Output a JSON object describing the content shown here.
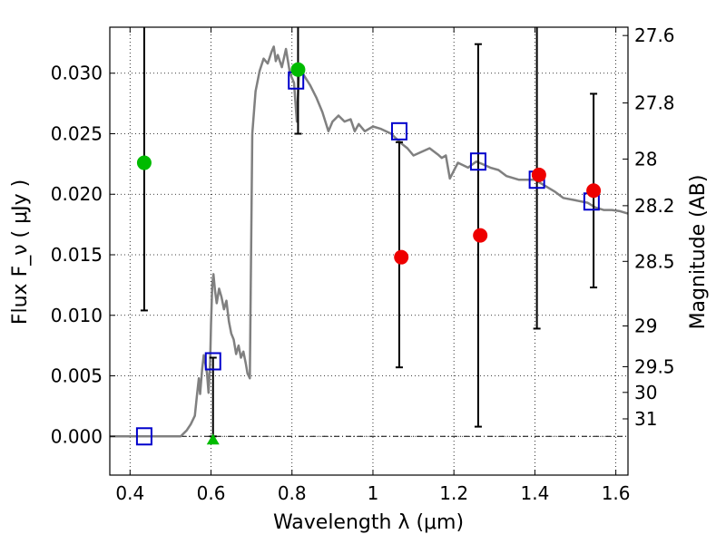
{
  "chart_data": {
    "type": "scatter",
    "title": "",
    "xlabel": "Wavelength  λ (μm)",
    "ylabel": "Flux  F_ν ( μJy )",
    "ylabel_right": "Magnitude (AB)",
    "xlim": [
      0.35,
      1.63
    ],
    "ylim": [
      -0.0032,
      0.0338
    ],
    "grid": true,
    "x_ticks": [
      {
        "value": 0.4,
        "label": "0.4"
      },
      {
        "value": 0.6,
        "label": "0.6"
      },
      {
        "value": 0.8,
        "label": "0.8"
      },
      {
        "value": 1.0,
        "label": "1"
      },
      {
        "value": 1.2,
        "label": "1.2"
      },
      {
        "value": 1.4,
        "label": "1.4"
      },
      {
        "value": 1.6,
        "label": "1.6"
      }
    ],
    "y_ticks": [
      {
        "value": 0.0,
        "label": "0.000"
      },
      {
        "value": 0.005,
        "label": "0.005"
      },
      {
        "value": 0.01,
        "label": "0.010"
      },
      {
        "value": 0.015,
        "label": "0.015"
      },
      {
        "value": 0.02,
        "label": "0.020"
      },
      {
        "value": 0.025,
        "label": "0.025"
      },
      {
        "value": 0.03,
        "label": "0.030"
      }
    ],
    "magnitude_ticks": [
      {
        "value": 27.6,
        "label": "27.6"
      },
      {
        "value": 27.8,
        "label": "27.8"
      },
      {
        "value": 28.0,
        "label": "28"
      },
      {
        "value": 28.2,
        "label": "28.2"
      },
      {
        "value": 28.5,
        "label": "28.5"
      },
      {
        "value": 29.0,
        "label": "29"
      },
      {
        "value": 29.5,
        "label": "29.5"
      },
      {
        "value": 30.0,
        "label": "30"
      },
      {
        "value": 31.0,
        "label": "31"
      }
    ],
    "magnitude_zero_point": 23.9,
    "model_sed": {
      "color": "#808080",
      "points": [
        [
          0.35,
          0.0
        ],
        [
          0.5,
          0.0
        ],
        [
          0.525,
          0.0
        ],
        [
          0.54,
          0.0005
        ],
        [
          0.55,
          0.001
        ],
        [
          0.56,
          0.0017
        ],
        [
          0.565,
          0.0033
        ],
        [
          0.57,
          0.0048
        ],
        [
          0.573,
          0.0035
        ],
        [
          0.578,
          0.0055
        ],
        [
          0.582,
          0.0067
        ],
        [
          0.586,
          0.006
        ],
        [
          0.59,
          0.0052
        ],
        [
          0.594,
          0.0036
        ],
        [
          0.598,
          0.0062
        ],
        [
          0.6,
          0.0092
        ],
        [
          0.603,
          0.0125
        ],
        [
          0.606,
          0.0134
        ],
        [
          0.61,
          0.012
        ],
        [
          0.614,
          0.011
        ],
        [
          0.62,
          0.0122
        ],
        [
          0.626,
          0.0115
        ],
        [
          0.632,
          0.0105
        ],
        [
          0.638,
          0.0112
        ],
        [
          0.644,
          0.0095
        ],
        [
          0.65,
          0.0085
        ],
        [
          0.656,
          0.008
        ],
        [
          0.662,
          0.0068
        ],
        [
          0.668,
          0.0075
        ],
        [
          0.674,
          0.0065
        ],
        [
          0.68,
          0.007
        ],
        [
          0.686,
          0.006
        ],
        [
          0.69,
          0.0052
        ],
        [
          0.696,
          0.0048
        ],
        [
          0.702,
          0.025
        ],
        [
          0.71,
          0.0285
        ],
        [
          0.72,
          0.0302
        ],
        [
          0.73,
          0.0312
        ],
        [
          0.74,
          0.0308
        ],
        [
          0.75,
          0.0318
        ],
        [
          0.755,
          0.0322
        ],
        [
          0.76,
          0.031
        ],
        [
          0.765,
          0.0315
        ],
        [
          0.775,
          0.0305
        ],
        [
          0.785,
          0.032
        ],
        [
          0.795,
          0.03
        ],
        [
          0.805,
          0.0292
        ],
        [
          0.812,
          0.026
        ],
        [
          0.818,
          0.0305
        ],
        [
          0.83,
          0.0298
        ],
        [
          0.845,
          0.029
        ],
        [
          0.86,
          0.028
        ],
        [
          0.875,
          0.0268
        ],
        [
          0.89,
          0.0252
        ],
        [
          0.9,
          0.026
        ],
        [
          0.915,
          0.0265
        ],
        [
          0.93,
          0.026
        ],
        [
          0.945,
          0.0262
        ],
        [
          0.955,
          0.0252
        ],
        [
          0.965,
          0.0258
        ],
        [
          0.98,
          0.0252
        ],
        [
          1.0,
          0.0256
        ],
        [
          1.02,
          0.0254
        ],
        [
          1.045,
          0.025
        ],
        [
          1.07,
          0.0242
        ],
        [
          1.085,
          0.0238
        ],
        [
          1.1,
          0.0232
        ],
        [
          1.12,
          0.0235
        ],
        [
          1.14,
          0.0238
        ],
        [
          1.16,
          0.0233
        ],
        [
          1.17,
          0.023
        ],
        [
          1.18,
          0.0232
        ],
        [
          1.19,
          0.0213
        ],
        [
          1.21,
          0.0226
        ],
        [
          1.235,
          0.0222
        ],
        [
          1.255,
          0.0227
        ],
        [
          1.27,
          0.0225
        ],
        [
          1.29,
          0.0222
        ],
        [
          1.31,
          0.022
        ],
        [
          1.33,
          0.0215
        ],
        [
          1.36,
          0.0212
        ],
        [
          1.4,
          0.0212
        ],
        [
          1.42,
          0.0208
        ],
        [
          1.45,
          0.0202
        ],
        [
          1.47,
          0.0197
        ],
        [
          1.5,
          0.0195
        ],
        [
          1.53,
          0.0193
        ],
        [
          1.55,
          0.0189
        ],
        [
          1.57,
          0.0187
        ],
        [
          1.59,
          0.0187
        ],
        [
          1.61,
          0.0186
        ],
        [
          1.63,
          0.0184
        ]
      ]
    },
    "series": [
      {
        "marker": "open-square",
        "color": "#0000cc",
        "points": [
          {
            "x": 0.435,
            "y": 0.0
          },
          {
            "x": 0.605,
            "y": 0.0062
          },
          {
            "x": 0.81,
            "y": 0.0294
          },
          {
            "x": 1.065,
            "y": 0.0252
          },
          {
            "x": 1.26,
            "y": 0.0227
          },
          {
            "x": 1.405,
            "y": 0.0212
          },
          {
            "x": 1.54,
            "y": 0.0194
          }
        ]
      },
      {
        "marker": "filled-circle",
        "color": "#00bb00",
        "points": [
          {
            "x": 0.435,
            "y": 0.0226
          },
          {
            "x": 0.815,
            "y": 0.0303
          }
        ]
      },
      {
        "marker": "filled-triangle",
        "color": "#00bb00",
        "points": [
          {
            "x": 0.605,
            "y": -0.0003
          }
        ]
      },
      {
        "marker": "filled-circle",
        "color": "#ee0000",
        "points": [
          {
            "x": 1.07,
            "y": 0.0148
          },
          {
            "x": 1.265,
            "y": 0.0166
          },
          {
            "x": 1.41,
            "y": 0.0216
          },
          {
            "x": 1.545,
            "y": 0.0203
          }
        ]
      }
    ],
    "error_bars": [
      {
        "x": 0.435,
        "low": 0.0104,
        "high": 0.0338
      },
      {
        "x": 0.605,
        "low": 0.0,
        "high": 0.0065
      },
      {
        "x": 0.815,
        "low": 0.025,
        "high": 0.0338
      },
      {
        "x": 1.065,
        "low": 0.0057,
        "high": 0.0243
      },
      {
        "x": 1.26,
        "low": 0.0008,
        "high": 0.0324
      },
      {
        "x": 1.405,
        "low": 0.0089,
        "high": 0.0338
      },
      {
        "x": 1.545,
        "low": 0.0123,
        "high": 0.0283
      }
    ]
  }
}
